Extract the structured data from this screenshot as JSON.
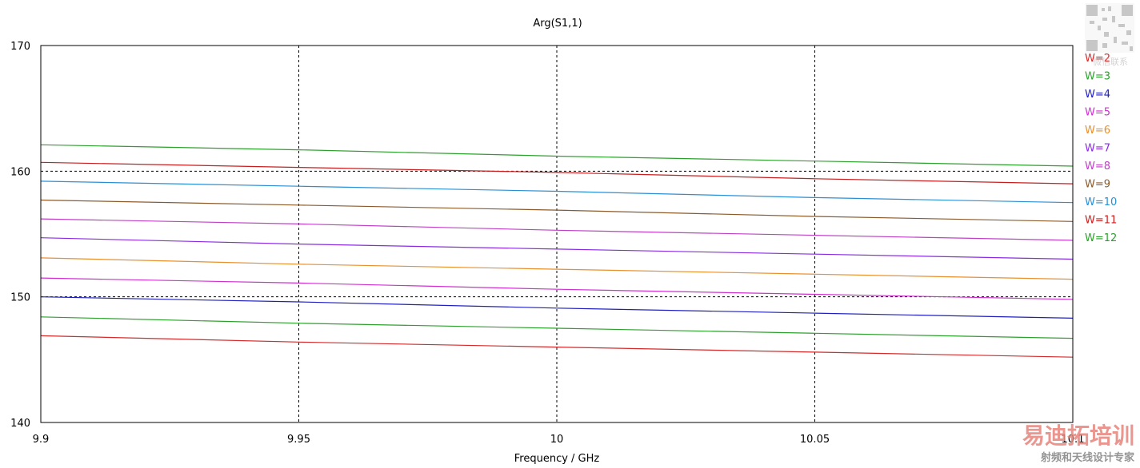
{
  "chart_data": {
    "type": "line",
    "title": "Arg(S1,1)",
    "xlabel": "Frequency / GHz",
    "ylabel": "",
    "xlim": [
      9.9,
      10.1
    ],
    "ylim": [
      140,
      170
    ],
    "x_ticks": [
      9.9,
      9.95,
      10,
      10.05,
      10.1
    ],
    "x_tick_labels": [
      "9.9",
      "9.95",
      "10",
      "10.05",
      "10.1"
    ],
    "y_ticks": [
      140,
      150,
      160,
      170
    ],
    "y_tick_labels": [
      "140",
      "150",
      "160",
      "170"
    ],
    "grid": "dashed at ticks",
    "legend_position": "right",
    "x": [
      9.9,
      9.95,
      10,
      10.05,
      10.1
    ],
    "series": [
      {
        "name": "W=2",
        "color": "#d42a2a",
        "values": [
          146.9,
          146.4,
          146.0,
          145.6,
          145.2
        ]
      },
      {
        "name": "W=3",
        "color": "#2ca02c",
        "values": [
          148.4,
          147.9,
          147.5,
          147.1,
          146.7
        ]
      },
      {
        "name": "W=4",
        "color": "#1f1fbf",
        "values": [
          150.0,
          149.6,
          149.1,
          148.7,
          148.3
        ]
      },
      {
        "name": "W=5",
        "color": "#d030d0",
        "values": [
          151.5,
          151.1,
          150.6,
          150.2,
          149.8
        ]
      },
      {
        "name": "W=6",
        "color": "#e8902c",
        "values": [
          153.1,
          152.6,
          152.2,
          151.8,
          151.4
        ]
      },
      {
        "name": "W=7",
        "color": "#8a2be2",
        "values": [
          154.7,
          154.2,
          153.8,
          153.4,
          153.0
        ]
      },
      {
        "name": "W=8",
        "color": "#c040c8",
        "values": [
          156.2,
          155.8,
          155.3,
          154.9,
          154.5
        ]
      },
      {
        "name": "W=9",
        "color": "#8b5a2b",
        "values": [
          157.7,
          157.3,
          156.9,
          156.4,
          156.0
        ]
      },
      {
        "name": "W=10",
        "color": "#2a8fd4",
        "values": [
          159.2,
          158.8,
          158.4,
          157.9,
          157.5
        ]
      },
      {
        "name": "W=11",
        "color": "#c81e1e",
        "values": [
          160.7,
          160.3,
          159.9,
          159.4,
          159.0
        ]
      },
      {
        "name": "W=12",
        "color": "#2ca02c",
        "values": [
          162.1,
          161.7,
          161.2,
          160.8,
          160.4
        ]
      }
    ]
  },
  "watermark": {
    "brand": "易迪拓培训",
    "tagline": "射频和天线设计专家",
    "qr_label": "微信联系"
  }
}
